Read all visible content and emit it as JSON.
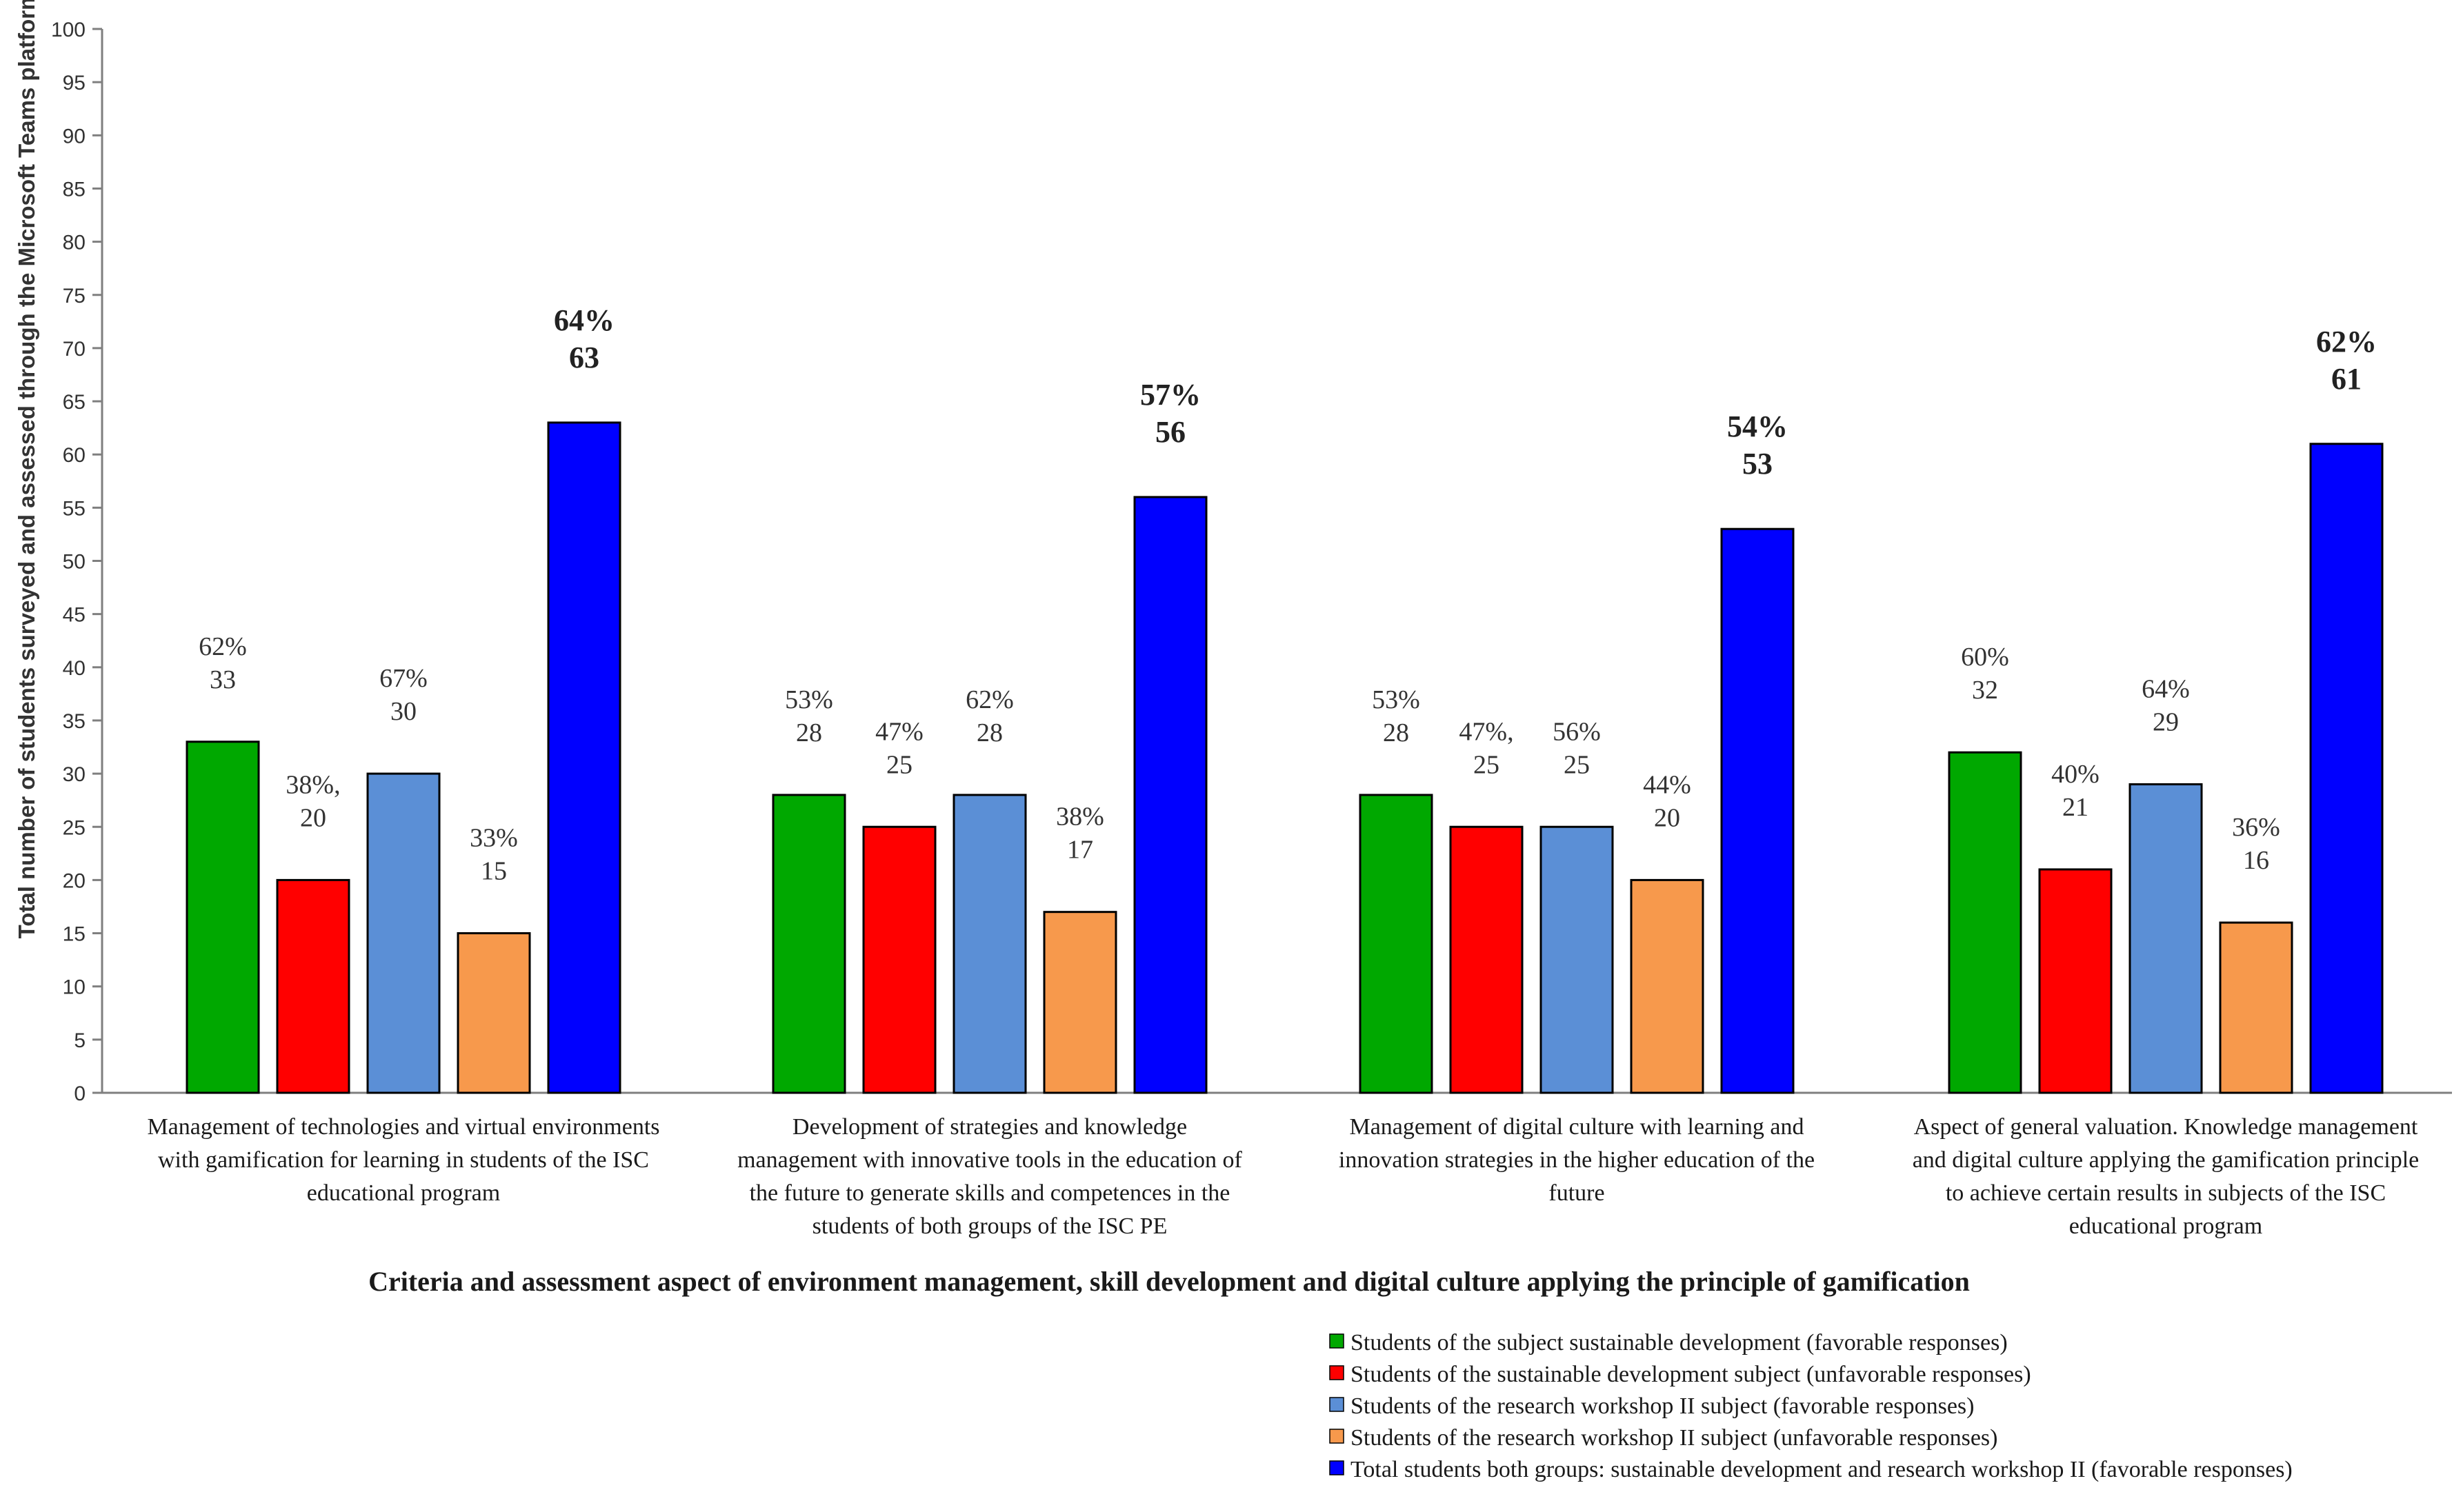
{
  "chart_data": {
    "type": "bar",
    "title": "",
    "ylabel": "Total number of students surveyed and assessed through the Microsoft Teams platform",
    "xlabel": "Criteria and assessment aspect of environment management, skill development and digital culture applying the principle of gamification",
    "ylim": [
      0,
      100
    ],
    "ytick_step": 5,
    "grid": false,
    "legend_position": "bottom-right",
    "categories": [
      [
        "Management of technologies and virtual environments",
        "with gamification for learning in students of the ISC",
        "educational program"
      ],
      [
        "Development of strategies and knowledge",
        "management with innovative tools in the education of",
        "the future to generate skills and competences in the",
        "students of both groups of the ISC PE"
      ],
      [
        "Management of digital culture with learning and",
        "innovation strategies in the higher education of the",
        "future"
      ],
      [
        "Aspect of general valuation. Knowledge management",
        "and digital culture applying the gamification principle",
        "to achieve certain results in subjects of the ISC",
        "educational program"
      ]
    ],
    "series": [
      {
        "name": "Students of the subject sustainable development (favorable responses)",
        "color": "#00a800",
        "values": [
          33,
          28,
          28,
          32
        ],
        "labels": [
          [
            "62%",
            "33"
          ],
          [
            "53%",
            "28"
          ],
          [
            "53%",
            "28"
          ],
          [
            "60%",
            "32"
          ]
        ],
        "bold": false
      },
      {
        "name": "Students of the sustainable development subject (unfavorable responses)",
        "color": "#ff0000",
        "values": [
          20,
          25,
          25,
          21
        ],
        "labels": [
          [
            "38%,",
            "20"
          ],
          [
            "47%",
            "25"
          ],
          [
            "47%,",
            "25"
          ],
          [
            "40%",
            "21"
          ]
        ],
        "bold": false
      },
      {
        "name": "Students of the research workshop II subject (favorable responses)",
        "color": "#5b8fd6",
        "values": [
          30,
          28,
          25,
          29
        ],
        "labels": [
          [
            "67%",
            "30"
          ],
          [
            "62%",
            "28"
          ],
          [
            "56%",
            "25"
          ],
          [
            "64%",
            "29"
          ]
        ],
        "bold": false
      },
      {
        "name": "Students of the research workshop II subject (unfavorable responses)",
        "color": "#f7994c",
        "values": [
          15,
          17,
          20,
          16
        ],
        "labels": [
          [
            "33%",
            "15"
          ],
          [
            "38%",
            "17"
          ],
          [
            "44%",
            "20"
          ],
          [
            "36%",
            "16"
          ]
        ],
        "bold": false
      },
      {
        "name": "Total students both groups: sustainable development and research workshop II (favorable responses)",
        "color": "#0000ff",
        "values": [
          63,
          56,
          53,
          61
        ],
        "labels": [
          [
            "64%",
            "63"
          ],
          [
            "57%",
            "56"
          ],
          [
            "54%",
            "53"
          ],
          [
            "62%",
            "61"
          ]
        ],
        "bold": true
      }
    ]
  }
}
